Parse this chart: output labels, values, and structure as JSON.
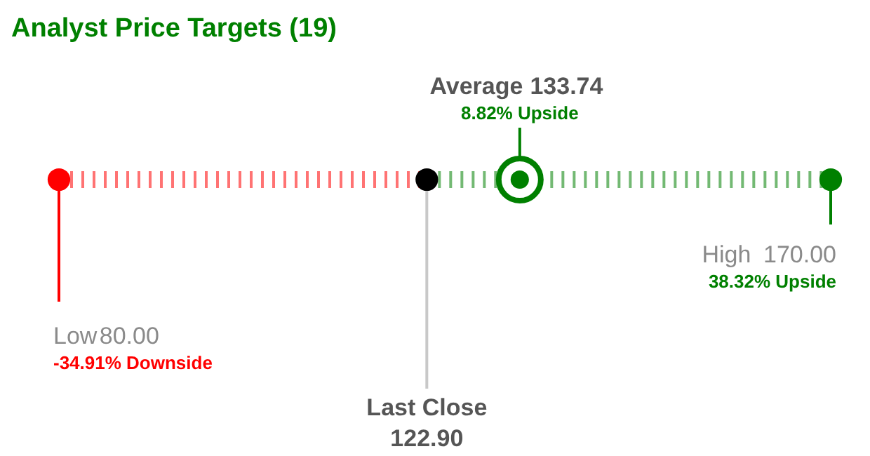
{
  "chart_data": {
    "type": "other",
    "title": "Analyst Price Targets (19)",
    "categories": [
      "Low",
      "Last Close",
      "Average",
      "High"
    ],
    "values": [
      80,
      122.9,
      133.74,
      170
    ],
    "value_labels": [
      "80.00",
      "122.90",
      "133.74",
      "170.00"
    ],
    "colors": [
      "#ff0000",
      "#000000",
      "#008000",
      "#008000"
    ],
    "annotations": [
      "-34.91% Downside",
      null,
      "8.82% Upside",
      "38.32% Upside"
    ]
  }
}
